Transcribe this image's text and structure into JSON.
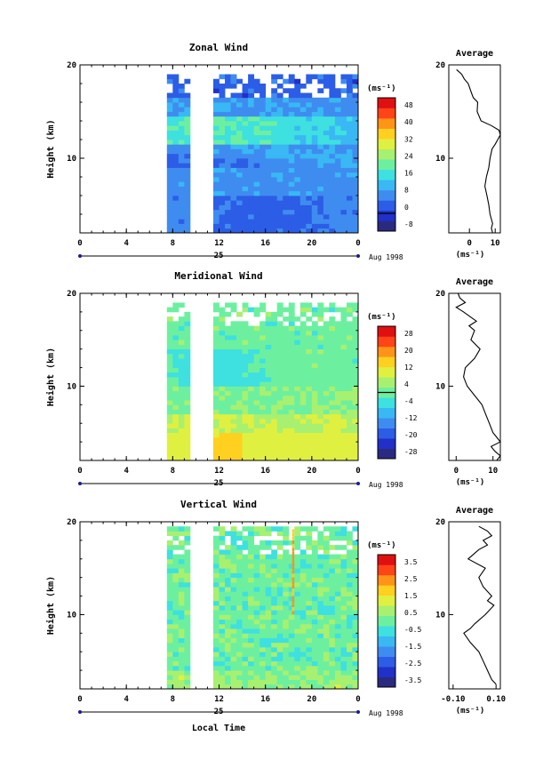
{
  "figure": {
    "x_tick_labels": [
      "0",
      "4",
      "8",
      "12",
      "16",
      "20",
      "0"
    ],
    "date_label": "25",
    "month_label": "Aug 1998",
    "xlabel": "Local Time",
    "ylabel": "Height (km)",
    "unit": "(ms⁻¹)",
    "avg_title": "Average"
  },
  "chart_data": [
    {
      "type": "heatmap",
      "title": "Zonal Wind",
      "ylabel": "Height (km)",
      "x_range_hours": [
        0,
        24
      ],
      "ylim": [
        2,
        20
      ],
      "y_ticks": [
        10,
        20
      ],
      "data_gaps_hours": [
        [
          0,
          7.7
        ],
        [
          9.7,
          11.7
        ]
      ],
      "data_top_km": 19.0,
      "colorbar": {
        "unit": "(ms⁻¹)",
        "tick_labels": [
          "48",
          "40",
          "32",
          "24",
          "16",
          "8",
          "0",
          "-8"
        ],
        "levels": [
          -8,
          52
        ],
        "zero_line": 0,
        "colors": [
          "#2a2a80",
          "#2030c8",
          "#2c5de6",
          "#3f8cf0",
          "#39b8f4",
          "#3ee0e0",
          "#6cf0a0",
          "#a8f070",
          "#e0f040",
          "#ffd020",
          "#ff9418",
          "#ff4418",
          "#e01010"
        ]
      },
      "profile": {
        "title": "Average",
        "x_tick_labels": [
          "0",
          "10"
        ],
        "xlabel": "(ms⁻¹)",
        "xlim": [
          -8,
          12
        ],
        "heights_km": [
          2.0,
          2.5,
          3.0,
          4.0,
          5.0,
          6.0,
          7.0,
          8.0,
          9.0,
          10.0,
          11.0,
          11.5,
          12.0,
          12.5,
          13.0,
          13.5,
          14.0,
          15.0,
          16.0,
          16.5,
          17.0,
          18.0,
          18.5,
          19.0,
          19.5
        ],
        "values": [
          9.0,
          8.5,
          9.0,
          8.0,
          7.5,
          6.8,
          6.0,
          6.6,
          7.5,
          8.0,
          8.8,
          10.0,
          11.0,
          12.0,
          11.5,
          8.5,
          4.5,
          3.0,
          3.2,
          1.5,
          0.8,
          -0.5,
          -2.0,
          -3.0,
          -5.0
        ]
      }
    },
    {
      "type": "heatmap",
      "title": "Meridional Wind",
      "ylabel": "Height (km)",
      "x_range_hours": [
        0,
        24
      ],
      "ylim": [
        2,
        20
      ],
      "y_ticks": [
        10,
        20
      ],
      "data_gaps_hours": [
        [
          0,
          7.7
        ],
        [
          9.7,
          11.7
        ]
      ],
      "data_top_km": 19.0,
      "colorbar": {
        "unit": "(ms⁻¹)",
        "tick_labels": [
          "28",
          "20",
          "12",
          "4",
          "-4",
          "-12",
          "-20",
          "-28"
        ],
        "levels": [
          -32,
          32
        ],
        "zero_line": 0,
        "colors": [
          "#2a2a80",
          "#2030c8",
          "#2c5de6",
          "#3f8cf0",
          "#39b8f4",
          "#3ee0e0",
          "#6cf0a0",
          "#a8f070",
          "#e0f040",
          "#ffd020",
          "#ff9418",
          "#ff4418",
          "#e01010"
        ]
      },
      "profile": {
        "title": "Average",
        "x_tick_labels": [
          "0",
          "10"
        ],
        "xlabel": "(ms⁻¹)",
        "xlim": [
          -2,
          12
        ],
        "heights_km": [
          2.0,
          2.5,
          3.0,
          3.5,
          4.0,
          4.5,
          5.0,
          6.0,
          7.0,
          8.0,
          9.0,
          10.0,
          11.0,
          12.0,
          13.0,
          14.0,
          15.0,
          16.0,
          16.5,
          17.0,
          18.0,
          18.5,
          19.0,
          19.5,
          20.0
        ],
        "values": [
          11.0,
          12.0,
          10.5,
          9.5,
          12.0,
          11.0,
          10.0,
          9.0,
          8.0,
          7.0,
          5.0,
          3.0,
          2.0,
          2.5,
          5.0,
          6.5,
          4.0,
          5.0,
          3.5,
          5.5,
          2.0,
          0.0,
          2.5,
          1.0,
          0.5
        ]
      }
    },
    {
      "type": "heatmap",
      "title": "Vertical Wind",
      "ylabel": "Height (km)",
      "x_range_hours": [
        0,
        24
      ],
      "ylim": [
        2,
        20
      ],
      "y_ticks": [
        10,
        20
      ],
      "data_gaps_hours": [
        [
          0,
          7.7
        ],
        [
          9.7,
          11.7
        ]
      ],
      "data_top_km": 19.3,
      "colorbar": {
        "unit": "(ms⁻¹)",
        "tick_labels": [
          "3.5",
          "2.5",
          "1.5",
          "0.5",
          "-0.5",
          "-1.5",
          "-2.5",
          "-3.5"
        ],
        "levels": [
          -4,
          4
        ],
        "zero_line": null,
        "colors": [
          "#2a2a80",
          "#2030c8",
          "#2c5de6",
          "#3f8cf0",
          "#39b8f4",
          "#3ee0e0",
          "#6cf0a0",
          "#a8f070",
          "#e0f040",
          "#ffd020",
          "#ff9418",
          "#ff4418",
          "#e01010"
        ]
      },
      "profile": {
        "title": "Average",
        "x_tick_labels": [
          "-0.10",
          "0.10"
        ],
        "xlabel": "(ms⁻¹)",
        "xlim": [
          -0.12,
          0.12
        ],
        "heights_km": [
          2.5,
          3.0,
          4.0,
          5.0,
          6.0,
          7.0,
          8.0,
          8.5,
          9.0,
          10.0,
          10.5,
          11.0,
          11.5,
          12.0,
          13.0,
          14.0,
          15.0,
          16.0,
          17.0,
          17.5,
          18.0,
          18.5,
          19.0,
          19.5
        ],
        "values": [
          0.1,
          0.08,
          0.06,
          0.04,
          0.02,
          -0.02,
          -0.05,
          -0.02,
          0.0,
          0.05,
          0.07,
          0.09,
          0.06,
          0.08,
          0.04,
          0.02,
          0.05,
          -0.03,
          0.02,
          0.06,
          0.04,
          0.08,
          0.06,
          0.02
        ]
      }
    }
  ]
}
